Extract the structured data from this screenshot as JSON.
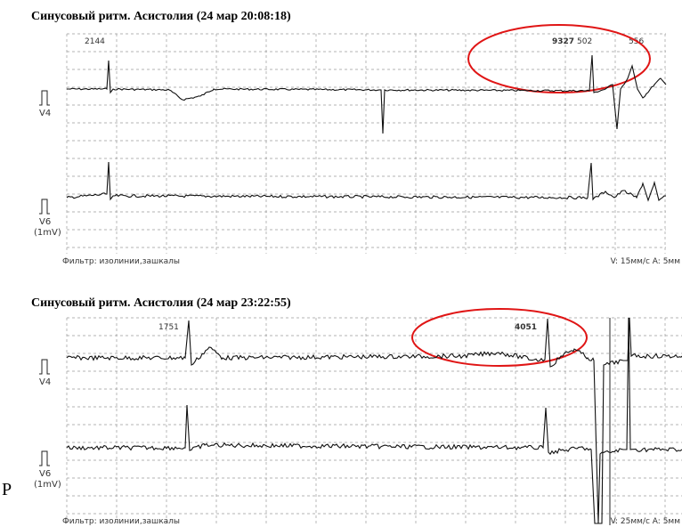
{
  "panels": [
    {
      "title": "Синусовый ритм. Асистолия (24 мар 20:08:18)",
      "intervals": [
        "2144",
        "9327",
        "502",
        "556"
      ],
      "leads": [
        "V4",
        "V6"
      ],
      "scale": "(1mV)",
      "filter": "Фильтр: изолинии,зашкалы",
      "speed": "V: 15мм/с  A: 5мм"
    },
    {
      "title": "Синусовый ритм. Асистолия (24 мар 23:22:55)",
      "intervals": [
        "1751",
        "4051"
      ],
      "leads": [
        "V4",
        "V6"
      ],
      "scale": "(1mV)",
      "filter": "Фильтр: изолинии,зашкалы",
      "speed": "V: 25мм/с  A: 5мм"
    }
  ],
  "stray": "P"
}
